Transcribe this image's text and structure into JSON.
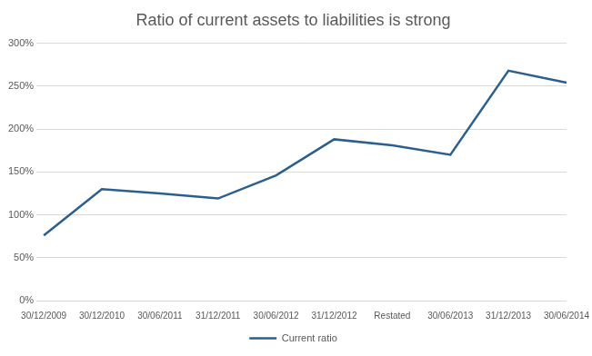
{
  "chart_data": {
    "type": "line",
    "title": "Ratio of current assets to liabilities is strong",
    "categories": [
      "30/12/2009",
      "30/12/2010",
      "30/06/2011",
      "31/12/2011",
      "30/06/2012",
      "31/12/2012",
      "Restated",
      "30/06/2013",
      "31/12/2013",
      "30/06/2014"
    ],
    "series": [
      {
        "name": "Current ratio",
        "color": "#2b5f8e",
        "values": [
          76,
          130,
          125,
          119,
          146,
          188,
          181,
          170,
          268,
          254
        ]
      }
    ],
    "ylim": [
      0,
      300
    ],
    "yticks": [
      {
        "value": 0,
        "label": "0%"
      },
      {
        "value": 50,
        "label": "50%"
      },
      {
        "value": 100,
        "label": "100%"
      },
      {
        "value": 150,
        "label": "150%"
      },
      {
        "value": 200,
        "label": "200%"
      },
      {
        "value": 250,
        "label": "250%"
      },
      {
        "value": 300,
        "label": "300%"
      }
    ],
    "grid": true,
    "legend": "bottom"
  }
}
